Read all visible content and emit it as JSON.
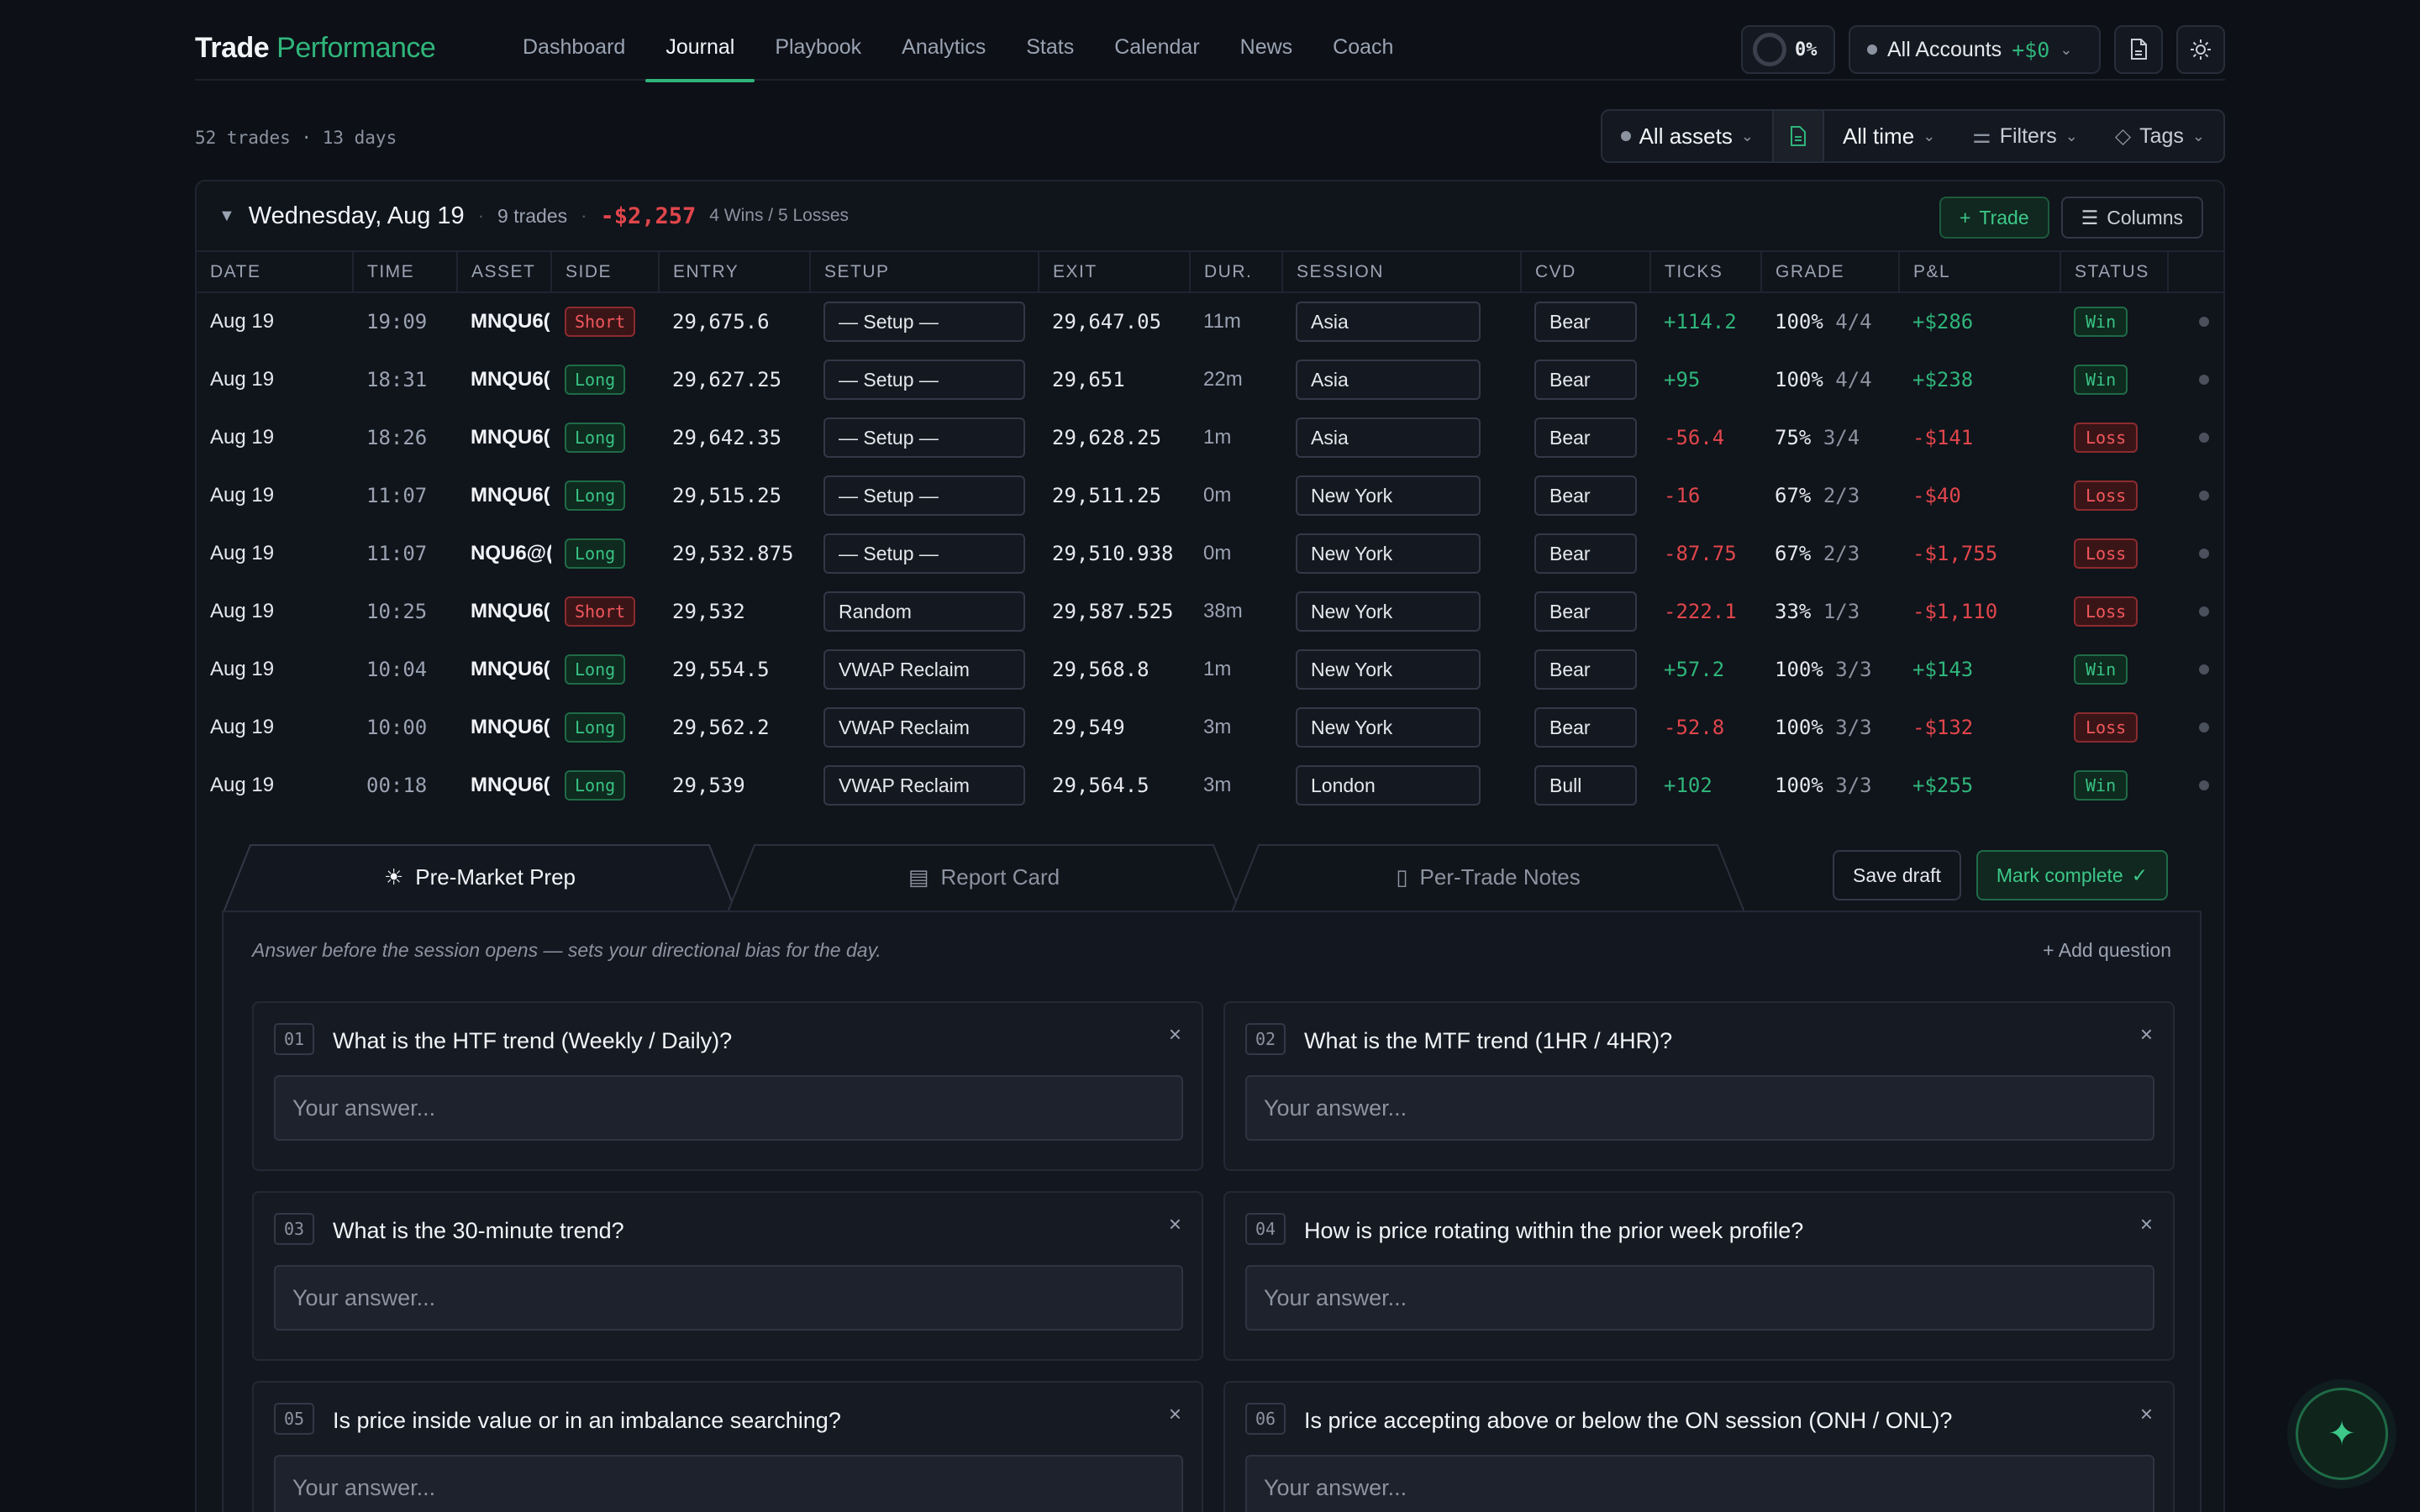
{
  "brand": {
    "first": "Trade",
    "second": "Performance"
  },
  "nav": [
    "Dashboard",
    "Journal",
    "Playbook",
    "Analytics",
    "Stats",
    "Calendar",
    "News",
    "Coach"
  ],
  "nav_active": "Journal",
  "progress": {
    "label": "0%",
    "value": 0
  },
  "account": {
    "label": "All Accounts",
    "pnl": "+$0"
  },
  "summary": "52 trades · 13 days",
  "filters": {
    "assets": "All assets",
    "time": "All time",
    "filters": "Filters",
    "tags": "Tags"
  },
  "day": {
    "date": "Wednesday, Aug 19",
    "trades": "9 trades",
    "pnl": "-$2,257",
    "record": "4 Wins / 5 Losses",
    "trade_btn": "Trade",
    "columns_btn": "Columns"
  },
  "columns": [
    "DATE",
    "TIME",
    "ASSET",
    "SIDE",
    "ENTRY",
    "SETUP",
    "EXIT",
    "DUR.",
    "SESSION",
    "CVD",
    "TICKS",
    "GRADE",
    "P&L",
    "STATUS"
  ],
  "rows": [
    {
      "date": "Aug 19",
      "time": "19:09",
      "asset": "MNQU6(",
      "side": "Short",
      "entry": "29,675.6",
      "setup": "— Setup —",
      "exit": "29,647.05",
      "dur": "11m",
      "session": "Asia",
      "cvd": "Bear",
      "ticks": "+114.2",
      "grade": "100%",
      "grade_frac": "4/4",
      "pnl": "+$286",
      "status": "Win"
    },
    {
      "date": "Aug 19",
      "time": "18:31",
      "asset": "MNQU6(",
      "side": "Long",
      "entry": "29,627.25",
      "setup": "— Setup —",
      "exit": "29,651",
      "dur": "22m",
      "session": "Asia",
      "cvd": "Bear",
      "ticks": "+95",
      "grade": "100%",
      "grade_frac": "4/4",
      "pnl": "+$238",
      "status": "Win"
    },
    {
      "date": "Aug 19",
      "time": "18:26",
      "asset": "MNQU6(",
      "side": "Long",
      "entry": "29,642.35",
      "setup": "— Setup —",
      "exit": "29,628.25",
      "dur": "1m",
      "session": "Asia",
      "cvd": "Bear",
      "ticks": "-56.4",
      "grade": "75%",
      "grade_frac": "3/4",
      "pnl": "-$141",
      "status": "Loss"
    },
    {
      "date": "Aug 19",
      "time": "11:07",
      "asset": "MNQU6(",
      "side": "Long",
      "entry": "29,515.25",
      "setup": "— Setup —",
      "exit": "29,511.25",
      "dur": "0m",
      "session": "New York",
      "cvd": "Bear",
      "ticks": "-16",
      "grade": "67%",
      "grade_frac": "2/3",
      "pnl": "-$40",
      "status": "Loss"
    },
    {
      "date": "Aug 19",
      "time": "11:07",
      "asset": "NQU6@(",
      "side": "Long",
      "entry": "29,532.875",
      "setup": "— Setup —",
      "exit": "29,510.938",
      "dur": "0m",
      "session": "New York",
      "cvd": "Bear",
      "ticks": "-87.75",
      "grade": "67%",
      "grade_frac": "2/3",
      "pnl": "-$1,755",
      "status": "Loss"
    },
    {
      "date": "Aug 19",
      "time": "10:25",
      "asset": "MNQU6(",
      "side": "Short",
      "entry": "29,532",
      "setup": "Random",
      "exit": "29,587.525",
      "dur": "38m",
      "session": "New York",
      "cvd": "Bear",
      "ticks": "-222.1",
      "grade": "33%",
      "grade_frac": "1/3",
      "pnl": "-$1,110",
      "status": "Loss"
    },
    {
      "date": "Aug 19",
      "time": "10:04",
      "asset": "MNQU6(",
      "side": "Long",
      "entry": "29,554.5",
      "setup": "VWAP Reclaim",
      "exit": "29,568.8",
      "dur": "1m",
      "session": "New York",
      "cvd": "Bear",
      "ticks": "+57.2",
      "grade": "100%",
      "grade_frac": "3/3",
      "pnl": "+$143",
      "status": "Win"
    },
    {
      "date": "Aug 19",
      "time": "10:00",
      "asset": "MNQU6(",
      "side": "Long",
      "entry": "29,562.2",
      "setup": "VWAP Reclaim",
      "exit": "29,549",
      "dur": "3m",
      "session": "New York",
      "cvd": "Bear",
      "ticks": "-52.8",
      "grade": "100%",
      "grade_frac": "3/3",
      "pnl": "-$132",
      "status": "Loss"
    },
    {
      "date": "Aug 19",
      "time": "00:18",
      "asset": "MNQU6(",
      "side": "Long",
      "entry": "29,539",
      "setup": "VWAP Reclaim",
      "exit": "29,564.5",
      "dur": "3m",
      "session": "London",
      "cvd": "Bull",
      "ticks": "+102",
      "grade": "100%",
      "grade_frac": "3/3",
      "pnl": "+$255",
      "status": "Win"
    }
  ],
  "tabs": [
    "Pre-Market Prep",
    "Report Card",
    "Per-Trade Notes"
  ],
  "panel": {
    "save_draft": "Save draft",
    "mark_complete": "Mark complete",
    "hint": "Answer before the session opens — sets your directional bias for the day.",
    "add_question": "+ Add question",
    "answer_placeholder": "Your answer..."
  },
  "questions": [
    {
      "num": "01",
      "text": "What is the HTF trend (Weekly / Daily)?"
    },
    {
      "num": "02",
      "text": "What is the MTF trend (1HR / 4HR)?"
    },
    {
      "num": "03",
      "text": "What is the 30-minute trend?"
    },
    {
      "num": "04",
      "text": "How is price rotating within the prior week profile?"
    },
    {
      "num": "05",
      "text": "Is price inside value or in an imbalance searching?"
    },
    {
      "num": "06",
      "text": "Is price accepting above or below the ON session (ONH / ONL)?"
    }
  ],
  "colors": {
    "accent": "#2fb57a",
    "loss": "#e0464b",
    "bg": "#0d1017"
  }
}
